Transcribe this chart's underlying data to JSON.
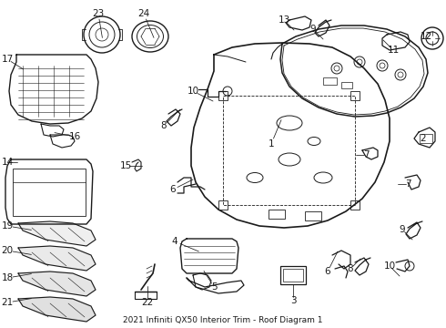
{
  "title": "2021 Infiniti QX50 Interior Trim - Roof Diagram 1",
  "bg": "#ffffff",
  "lc": "#1a1a1a",
  "fig_w": 4.9,
  "fig_h": 3.6,
  "dpi": 100,
  "font_size": 8.5,
  "label_font_size": 7.5
}
